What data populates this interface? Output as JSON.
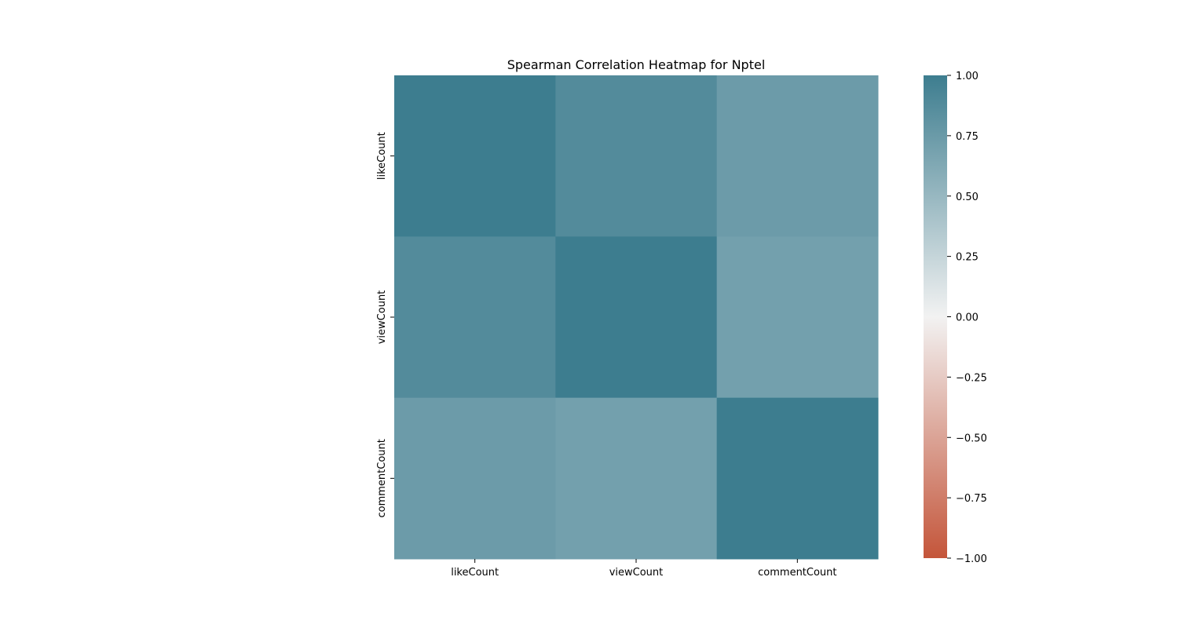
{
  "chart_data": {
    "type": "heatmap",
    "title": "Spearman Correlation Heatmap for Nptel",
    "xlabel": "",
    "ylabel": "",
    "x_categories": [
      "likeCount",
      "viewCount",
      "commentCount"
    ],
    "y_categories": [
      "likeCount",
      "viewCount",
      "commentCount"
    ],
    "values": [
      [
        1.0,
        0.88,
        0.74
      ],
      [
        0.88,
        1.0,
        0.7
      ],
      [
        0.74,
        0.7,
        1.0
      ]
    ],
    "colorbar": {
      "vmin": -1.0,
      "vmax": 1.0,
      "ticks": [
        "1.00",
        "0.75",
        "0.50",
        "0.25",
        "0.00",
        "−0.25",
        "−0.50",
        "−0.75",
        "−1.00"
      ],
      "tick_values": [
        1.0,
        0.75,
        0.5,
        0.25,
        0.0,
        -0.25,
        -0.5,
        -0.75,
        -1.0
      ],
      "colormap": "diverging",
      "low_color": "#c4553a",
      "mid_color": "#f2f2f2",
      "high_color": "#3d7d8f"
    },
    "grid": false
  }
}
